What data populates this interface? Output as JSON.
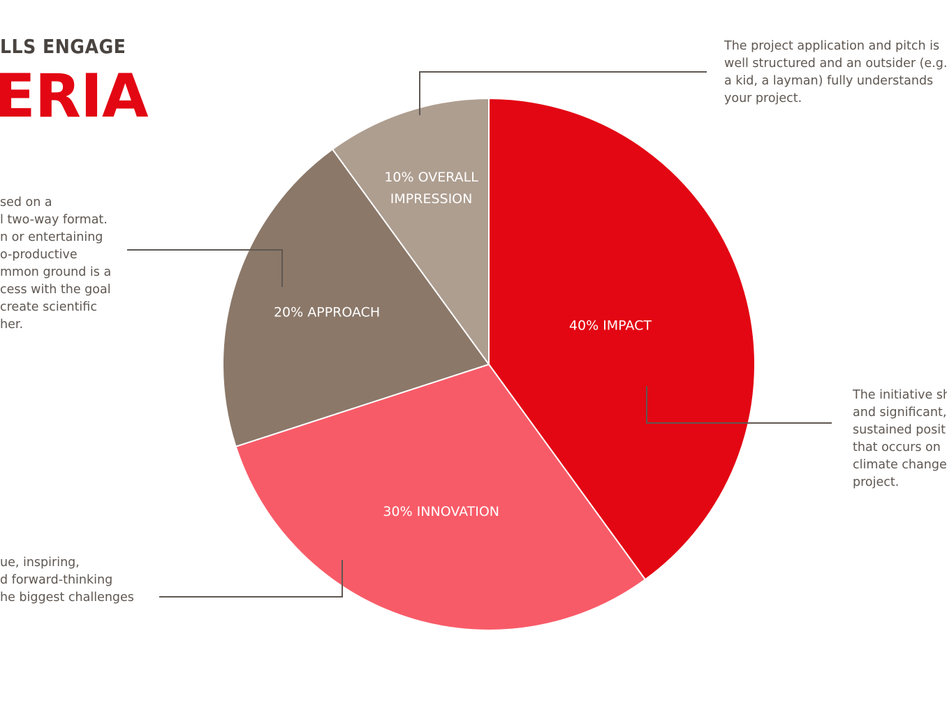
{
  "heading": {
    "subtitle": "LLS ENGAGE",
    "title": "ERIA"
  },
  "chart_data": {
    "type": "pie",
    "start": "top, clockwise",
    "slices": [
      {
        "label": "40% IMPACT",
        "lines": [
          "40% IMPACT"
        ],
        "value": 40,
        "color": "#e30613"
      },
      {
        "label": "30% INNOVATION",
        "lines": [
          "30% INNOVATION"
        ],
        "value": 30,
        "color": "#f85b68"
      },
      {
        "label": "20% APPROACH",
        "lines": [
          "20% APPROACH"
        ],
        "value": 20,
        "color": "#8b7869"
      },
      {
        "label": "10% OVERALL IMPRESSION",
        "lines": [
          "10% OVERALL",
          "IMPRESSION"
        ],
        "value": 10,
        "color": "#ae9e90"
      }
    ]
  },
  "annotations": {
    "overall": [
      "The project application and pitch is",
      "well structured and an outsider (e.g.",
      "a kid, a layman) fully understands",
      "your project."
    ],
    "approach": [
      "sed on a",
      "l two-way format.",
      "n or entertaining",
      "o-productive",
      "mmon ground is a",
      "cess with the goal",
      "create scientific",
      "her."
    ],
    "impact": [
      "The initiative sh",
      "and significant,",
      "sustained posit",
      "that occurs on",
      "climate change",
      "project."
    ],
    "innovation": [
      "ue, inspiring,",
      "d forward-thinking",
      "he biggest challenges"
    ]
  }
}
